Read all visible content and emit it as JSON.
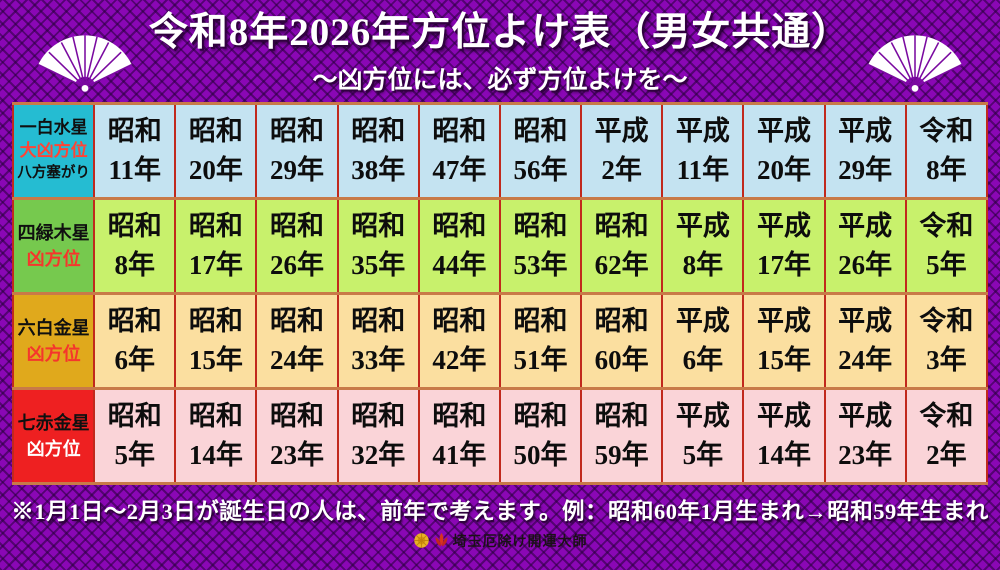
{
  "header": {
    "title": "令和8年2026年方位よけ表（男女共通）",
    "subtitle": "～凶方位には、必ず方位よけを～"
  },
  "table": {
    "rows": [
      {
        "star": "一白水星",
        "label": "大凶方位",
        "sublabel": "八方塞がり",
        "label_color": "#ff4435",
        "header_bg": "#25bcd2",
        "cell_bg": "#c4e3f1",
        "years": [
          {
            "era": "昭和",
            "num": "11年"
          },
          {
            "era": "昭和",
            "num": "20年"
          },
          {
            "era": "昭和",
            "num": "29年"
          },
          {
            "era": "昭和",
            "num": "38年"
          },
          {
            "era": "昭和",
            "num": "47年"
          },
          {
            "era": "昭和",
            "num": "56年"
          },
          {
            "era": "平成",
            "num": "2年"
          },
          {
            "era": "平成",
            "num": "11年"
          },
          {
            "era": "平成",
            "num": "20年"
          },
          {
            "era": "平成",
            "num": "29年"
          },
          {
            "era": "令和",
            "num": "8年"
          }
        ]
      },
      {
        "star": "四緑木星",
        "label": "凶方位",
        "sublabel": "",
        "label_color": "#f5362c",
        "header_bg": "#76c94e",
        "cell_bg": "#c8f16c",
        "years": [
          {
            "era": "昭和",
            "num": "8年"
          },
          {
            "era": "昭和",
            "num": "17年"
          },
          {
            "era": "昭和",
            "num": "26年"
          },
          {
            "era": "昭和",
            "num": "35年"
          },
          {
            "era": "昭和",
            "num": "44年"
          },
          {
            "era": "昭和",
            "num": "53年"
          },
          {
            "era": "昭和",
            "num": "62年"
          },
          {
            "era": "平成",
            "num": "8年"
          },
          {
            "era": "平成",
            "num": "17年"
          },
          {
            "era": "平成",
            "num": "26年"
          },
          {
            "era": "令和",
            "num": "5年"
          }
        ]
      },
      {
        "star": "六白金星",
        "label": "凶方位",
        "sublabel": "",
        "label_color": "#f5362c",
        "header_bg": "#e0a91c",
        "cell_bg": "#fbdfa0",
        "years": [
          {
            "era": "昭和",
            "num": "6年"
          },
          {
            "era": "昭和",
            "num": "15年"
          },
          {
            "era": "昭和",
            "num": "24年"
          },
          {
            "era": "昭和",
            "num": "33年"
          },
          {
            "era": "昭和",
            "num": "42年"
          },
          {
            "era": "昭和",
            "num": "51年"
          },
          {
            "era": "昭和",
            "num": "60年"
          },
          {
            "era": "平成",
            "num": "6年"
          },
          {
            "era": "平成",
            "num": "15年"
          },
          {
            "era": "平成",
            "num": "24年"
          },
          {
            "era": "令和",
            "num": "3年"
          }
        ]
      },
      {
        "star": "七赤金星",
        "label": "凶方位",
        "sublabel": "",
        "label_color": "#ffffff",
        "header_bg": "#ee2021",
        "cell_bg": "#fad4d8",
        "years": [
          {
            "era": "昭和",
            "num": "5年"
          },
          {
            "era": "昭和",
            "num": "14年"
          },
          {
            "era": "昭和",
            "num": "23年"
          },
          {
            "era": "昭和",
            "num": "32年"
          },
          {
            "era": "昭和",
            "num": "41年"
          },
          {
            "era": "昭和",
            "num": "50年"
          },
          {
            "era": "昭和",
            "num": "59年"
          },
          {
            "era": "平成",
            "num": "5年"
          },
          {
            "era": "平成",
            "num": "14年"
          },
          {
            "era": "平成",
            "num": "23年"
          },
          {
            "era": "令和",
            "num": "2年"
          }
        ]
      }
    ]
  },
  "note": "※1月1日～2月3日が誕生日の人は、前年で考えます。例：昭和60年1月生まれ→昭和59年生まれ",
  "footer": {
    "temple_name": "埼玉厄除け開運大師"
  },
  "colors": {
    "background_purple": "#8a07b5",
    "pattern_dark_purple": "#3c0152",
    "vertical_border": "#c1291d",
    "horizontal_border": "#c87a48",
    "title_text": "#ffffff"
  }
}
